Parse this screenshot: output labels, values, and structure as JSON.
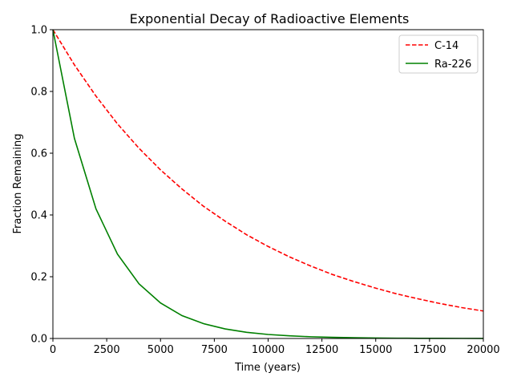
{
  "chart_data": {
    "type": "line",
    "title": "Exponential Decay of Radioactive Elements",
    "xlabel": "Time (years)",
    "ylabel": "Fraction Remaining",
    "xlim": [
      0,
      20000
    ],
    "ylim": [
      0,
      1.0
    ],
    "xticks": [
      0,
      2500,
      5000,
      7500,
      10000,
      12500,
      15000,
      17500,
      20000
    ],
    "xtick_labels": [
      "0",
      "2500",
      "5000",
      "7500",
      "10000",
      "12500",
      "15000",
      "17500",
      "20000"
    ],
    "yticks": [
      0,
      0.2,
      0.4,
      0.6,
      0.8,
      1.0
    ],
    "ytick_labels": [
      "0.0",
      "0.2",
      "0.4",
      "0.6",
      "0.8",
      "1.0"
    ],
    "grid": false,
    "legend_position": "top-right",
    "series": [
      {
        "name": "C-14",
        "color": "#ff0000",
        "style": "dashed",
        "x": [
          0,
          1000,
          2000,
          3000,
          4000,
          5000,
          6000,
          7000,
          8000,
          9000,
          10000,
          11000,
          12000,
          13000,
          14000,
          15000,
          16000,
          17000,
          18000,
          19000,
          20000
        ],
        "values": [
          1.0,
          0.886,
          0.785,
          0.695,
          0.616,
          0.546,
          0.484,
          0.428,
          0.38,
          0.336,
          0.298,
          0.264,
          0.234,
          0.207,
          0.184,
          0.163,
          0.144,
          0.128,
          0.113,
          0.1,
          0.089
        ]
      },
      {
        "name": "Ra-226",
        "color": "#008000",
        "style": "solid",
        "x": [
          0,
          1000,
          2000,
          3000,
          4000,
          5000,
          6000,
          7000,
          8000,
          9000,
          10000,
          11000,
          12000,
          13000,
          14000,
          15000,
          16000,
          17000,
          18000,
          19000,
          20000
        ],
        "values": [
          1.0,
          0.648,
          0.42,
          0.273,
          0.177,
          0.115,
          0.074,
          0.048,
          0.031,
          0.02,
          0.013,
          0.0085,
          0.0055,
          0.0036,
          0.0023,
          0.0015,
          0.001,
          0.0006,
          0.0004,
          0.0003,
          0.0002
        ]
      }
    ]
  }
}
